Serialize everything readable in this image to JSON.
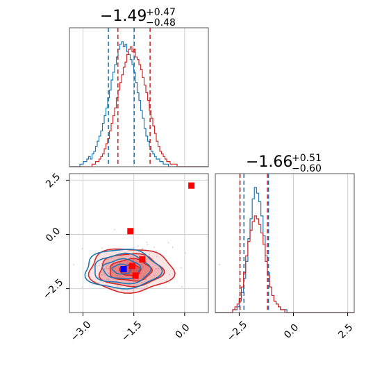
{
  "colors": {
    "blue": "#1f77b4",
    "red": "#d62728",
    "grid": "#d0d0d0",
    "marker_blue": "#0000ff",
    "marker_red": "#ff0000"
  },
  "chart_data": [
    {
      "type": "histogram",
      "panel": "top-left",
      "title": {
        "value": "−1.49",
        "upper": "+0.47",
        "lower": "−0.48"
      },
      "xlim": [
        -3.4,
        0.7
      ],
      "grid": true,
      "series": [
        {
          "color": "#1f77b4",
          "quantiles": [
            -2.25,
            -1.49
          ],
          "bins": [
            -3.4,
            0.7
          ],
          "counts": [
            0,
            0,
            0,
            0,
            0,
            0,
            1,
            1,
            2,
            2,
            3,
            4,
            3,
            5,
            6,
            8,
            10,
            12,
            14,
            17,
            20,
            23,
            27,
            30,
            34,
            37,
            40,
            43,
            46,
            48,
            49,
            47,
            48,
            45,
            44,
            42,
            40,
            37,
            33,
            29,
            26,
            22,
            19,
            15,
            12,
            10,
            8,
            6,
            5,
            4,
            3,
            3,
            2,
            2,
            1,
            1,
            1,
            0,
            0,
            0,
            0,
            0,
            0,
            0,
            0,
            0,
            0,
            0,
            0,
            0,
            0,
            0,
            0,
            0,
            0,
            0,
            0,
            0,
            0,
            0
          ]
        },
        {
          "color": "#d62728",
          "quantiles": [
            -1.97,
            -1.02
          ],
          "bins": [
            -3.4,
            0.7
          ],
          "counts": [
            0,
            0,
            0,
            0,
            0,
            0,
            0,
            0,
            0,
            0,
            0,
            0,
            0,
            1,
            1,
            2,
            2,
            3,
            4,
            5,
            7,
            9,
            11,
            14,
            17,
            20,
            23,
            27,
            30,
            33,
            36,
            39,
            41,
            44,
            46,
            47,
            45,
            46,
            43,
            42,
            40,
            38,
            35,
            32,
            29,
            26,
            22,
            19,
            16,
            13,
            10,
            8,
            6,
            5,
            4,
            3,
            2,
            2,
            1,
            1,
            1,
            1,
            0,
            0,
            0,
            0,
            0,
            0,
            0,
            0,
            0,
            0,
            0,
            0,
            0,
            0,
            0,
            0,
            0,
            0
          ]
        }
      ]
    },
    {
      "type": "histogram",
      "panel": "bottom-right",
      "title": {
        "value": "−1.66",
        "upper": "+0.51",
        "lower": "−0.60"
      },
      "xlim": [
        -3.6,
        2.8
      ],
      "xticks": [
        -2.5,
        0.0,
        2.5
      ],
      "xtick_labels": [
        "−2.5",
        "0.0",
        "2.5"
      ],
      "grid": true,
      "series": [
        {
          "color": "#1f77b4",
          "quantiles": [
            -2.28,
            -1.15
          ],
          "bins": [
            -3.6,
            2.8
          ],
          "counts": [
            0,
            0,
            0,
            0,
            0,
            0,
            0,
            0,
            1,
            1,
            2,
            4,
            7,
            12,
            18,
            26,
            33,
            40,
            44,
            42,
            39,
            34,
            27,
            20,
            14,
            9,
            6,
            4,
            3,
            2,
            1,
            1,
            1,
            0,
            0,
            0,
            0,
            0,
            0,
            0,
            0,
            0,
            0,
            0,
            0,
            0,
            0,
            0,
            0,
            0,
            0,
            0,
            0,
            0,
            0,
            0,
            0,
            0,
            0,
            0,
            0,
            0,
            0,
            0
          ]
        },
        {
          "color": "#d62728",
          "quantiles": [
            -2.46,
            -1.2
          ],
          "bins": [
            -3.6,
            2.8
          ],
          "counts": [
            0,
            0,
            0,
            0,
            0,
            0,
            0,
            0,
            1,
            2,
            3,
            5,
            9,
            14,
            20,
            25,
            29,
            32,
            34,
            33,
            31,
            28,
            24,
            18,
            13,
            9,
            6,
            4,
            3,
            2,
            1,
            1,
            0,
            0,
            0,
            0,
            0,
            0,
            0,
            0,
            0,
            0,
            0,
            0,
            0,
            0,
            0,
            0,
            0,
            0,
            0,
            0,
            0,
            0,
            0,
            0,
            0,
            0,
            0,
            0,
            0,
            0,
            0,
            0
          ]
        }
      ]
    },
    {
      "type": "contour",
      "panel": "bottom-left",
      "xlim": [
        -3.4,
        0.7
      ],
      "ylim": [
        -3.6,
        2.8
      ],
      "xticks": [
        -3.0,
        -1.5,
        0.0
      ],
      "xtick_labels": [
        "−3.0",
        "−1.5",
        "0.0"
      ],
      "yticks": [
        -2.5,
        0.0,
        2.5
      ],
      "ytick_labels": [
        "−2.5",
        "0.0",
        "2.5"
      ],
      "grid": true,
      "series": [
        {
          "color": "#d62728",
          "center": [
            -1.6,
            -1.65
          ],
          "sigma": [
            0.62,
            0.5
          ],
          "filled": true
        },
        {
          "color": "#1f77b4",
          "center": [
            -1.85,
            -1.6
          ],
          "sigma": [
            0.55,
            0.45
          ],
          "filled": false
        }
      ],
      "markers": [
        {
          "color": "#ff0000",
          "x": 0.2,
          "y": 2.25
        },
        {
          "color": "#ff0000",
          "x": -1.6,
          "y": 0.15
        },
        {
          "color": "#ff0000",
          "x": -1.25,
          "y": -1.15
        },
        {
          "color": "#ff0000",
          "x": -1.45,
          "y": -1.9
        },
        {
          "color": "#ff0000",
          "x": -1.55,
          "y": -1.45
        },
        {
          "color": "#0000ff",
          "x": -1.8,
          "y": -1.6
        }
      ]
    }
  ]
}
